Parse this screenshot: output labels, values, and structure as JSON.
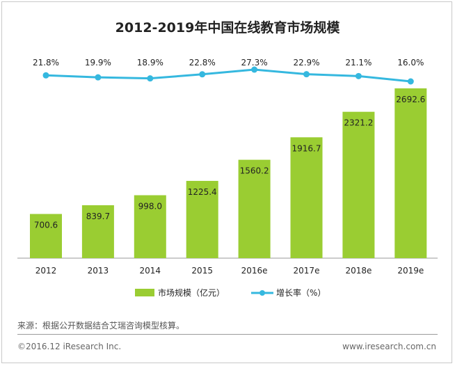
{
  "chart_data": {
    "type": "bar",
    "title": "2012-2019年中国在线教育市场规模",
    "categories": [
      "2012",
      "2013",
      "2014",
      "2015",
      "2016e",
      "2017e",
      "2018e",
      "2019e"
    ],
    "series": [
      {
        "name": "市场规模（亿元）",
        "type": "bar",
        "values": [
          700.6,
          839.7,
          998.0,
          1225.4,
          1560.2,
          1916.7,
          2321.2,
          2692.6
        ]
      },
      {
        "name": "增长率（%）",
        "type": "line",
        "values": [
          21.8,
          19.9,
          18.9,
          22.8,
          27.3,
          22.9,
          21.1,
          16.0
        ]
      }
    ],
    "bar_value_labels": [
      "700.6",
      "839.7",
      "998.0",
      "1225.4",
      "1560.2",
      "1916.7",
      "2321.2",
      "2692.6"
    ],
    "line_value_labels": [
      "21.8%",
      "19.9%",
      "18.9%",
      "22.8%",
      "27.3%",
      "22.9%",
      "21.1%",
      "16.0%"
    ],
    "colors": {
      "bar": "#9acd32",
      "line": "#35b8df",
      "axis": "#9a9a9a"
    },
    "legend_position": "bottom",
    "grid": false
  },
  "source": "来源：根据公开数据结合艾瑞咨询模型核算。",
  "copyright": "©2016.12 iResearch Inc.",
  "website": "www.iresearch.com.cn"
}
